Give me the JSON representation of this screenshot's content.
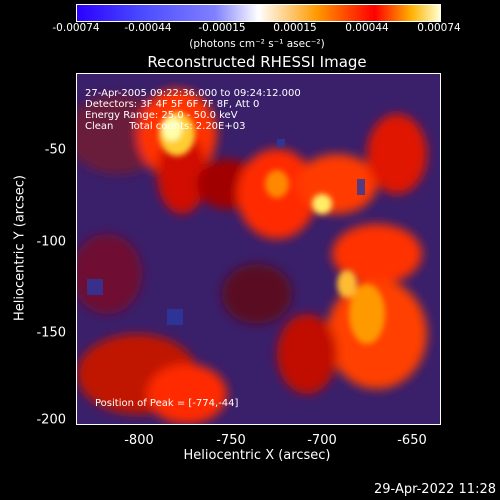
{
  "colorbar": {
    "ticks": [
      "-0.00074",
      "-0.00044",
      "-0.00015",
      "0.00015",
      "0.00044",
      "0.00074"
    ],
    "unit": "(photons cm⁻² s⁻¹ asec⁻²)"
  },
  "title": "Reconstructed RHESSI Image",
  "info": {
    "line1": "27-Apr-2005 09:22:36.000 to 09:24:12.000",
    "line2": "Detectors: 3F 4F 5F 6F 7F 8F, Att 0",
    "line3": "Energy Range: 25.0 - 50.0 keV",
    "line4": "Clean     Total counts: 2.20E+03",
    "peak": "Position of Peak = [-774,-44]"
  },
  "axes": {
    "xlabel": "Heliocentric X (arcsec)",
    "ylabel": "Heliocentric Y (arcsec)",
    "xticks": [
      "-800",
      "-750",
      "-700",
      "-650"
    ],
    "yticks": [
      "-50",
      "-100",
      "-150",
      "-200"
    ]
  },
  "footer": {
    "timestamp": "29-Apr-2022 11:28"
  },
  "colors": {
    "background": "#000000",
    "low": "#3a1f6a",
    "hot": "#ff0000",
    "peak": "#ffff99"
  }
}
